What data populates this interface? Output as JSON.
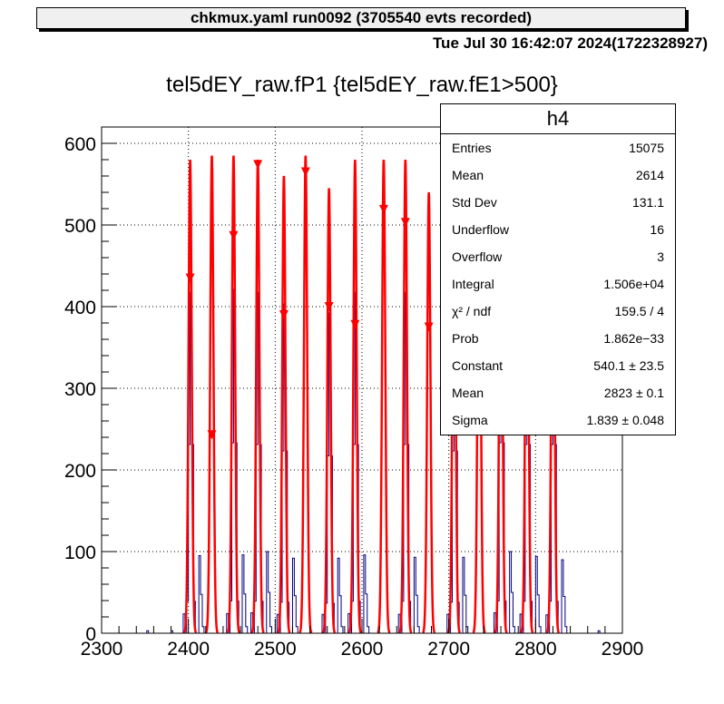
{
  "header": {
    "banner": "chkmux.yaml  run0092 (3705540 evts recorded)",
    "datestamp": "Tue Jul 30 16:42:07 2024(1722328927)"
  },
  "chart_data": {
    "type": "histogram",
    "title": "tel5dEY_raw.fP1 {tel5dEY_raw.fE1>500}",
    "xlabel": "",
    "ylabel": "",
    "xlim": [
      2300,
      2900
    ],
    "ylim": [
      0,
      620
    ],
    "x_ticks": [
      "2300",
      "2400",
      "2500",
      "2600",
      "2700",
      "2800",
      "2900"
    ],
    "y_ticks": [
      "0",
      "100",
      "200",
      "300",
      "400",
      "500",
      "600"
    ],
    "grid": true,
    "histogram_color": "#000080",
    "fit_color": "#ff0000",
    "peaks": [
      {
        "x": 2402,
        "height": 580,
        "marker": 435,
        "satellite": 95
      },
      {
        "x": 2427,
        "height": 585,
        "marker": 243,
        "satellite": 88
      },
      {
        "x": 2452,
        "height": 585,
        "marker": 487,
        "satellite": 96
      },
      {
        "x": 2480,
        "height": 580,
        "marker": 574,
        "satellite": 100
      },
      {
        "x": 2510,
        "height": 560,
        "marker": 390,
        "satellite": 92
      },
      {
        "x": 2535,
        "height": 585,
        "marker": 565,
        "satellite": 95
      },
      {
        "x": 2562,
        "height": 545,
        "marker": 400,
        "satellite": 92
      },
      {
        "x": 2592,
        "height": 580,
        "marker": 378,
        "satellite": 96
      },
      {
        "x": 2625,
        "height": 580,
        "marker": 519,
        "satellite": 94
      },
      {
        "x": 2650,
        "height": 580,
        "marker": 503,
        "satellite": 93
      },
      {
        "x": 2677,
        "height": 540,
        "marker": 375,
        "satellite": 96
      },
      {
        "x": 2706,
        "height": 560,
        "marker": 480,
        "satellite": 93
      },
      {
        "x": 2735,
        "height": 580,
        "marker": 475,
        "satellite": 91
      },
      {
        "x": 2760,
        "height": 585,
        "marker": 470,
        "satellite": 100
      },
      {
        "x": 2790,
        "height": 580,
        "marker": 500,
        "satellite": 94
      },
      {
        "x": 2820,
        "height": 580,
        "marker": 510,
        "satellite": 90
      }
    ],
    "sigma": 1.839
  },
  "stats": {
    "name": "h4",
    "rows": [
      {
        "label": "Entries",
        "value": "15075"
      },
      {
        "label": "Mean",
        "value": "2614"
      },
      {
        "label": "Std Dev",
        "value": "131.1"
      },
      {
        "label": "Underflow",
        "value": "16"
      },
      {
        "label": "Overflow",
        "value": "3"
      },
      {
        "label": "Integral",
        "value": "1.506e+04"
      },
      {
        "label": "χ² / ndf",
        "value": "159.5 / 4"
      },
      {
        "label": "Prob",
        "value": "1.862e−33"
      },
      {
        "label": "Constant",
        "value": "540.1  ± 23.5"
      },
      {
        "label": "Mean",
        "value": "2823  ± 0.1"
      },
      {
        "label": "Sigma",
        "value": "1.839  ± 0.048"
      }
    ]
  }
}
